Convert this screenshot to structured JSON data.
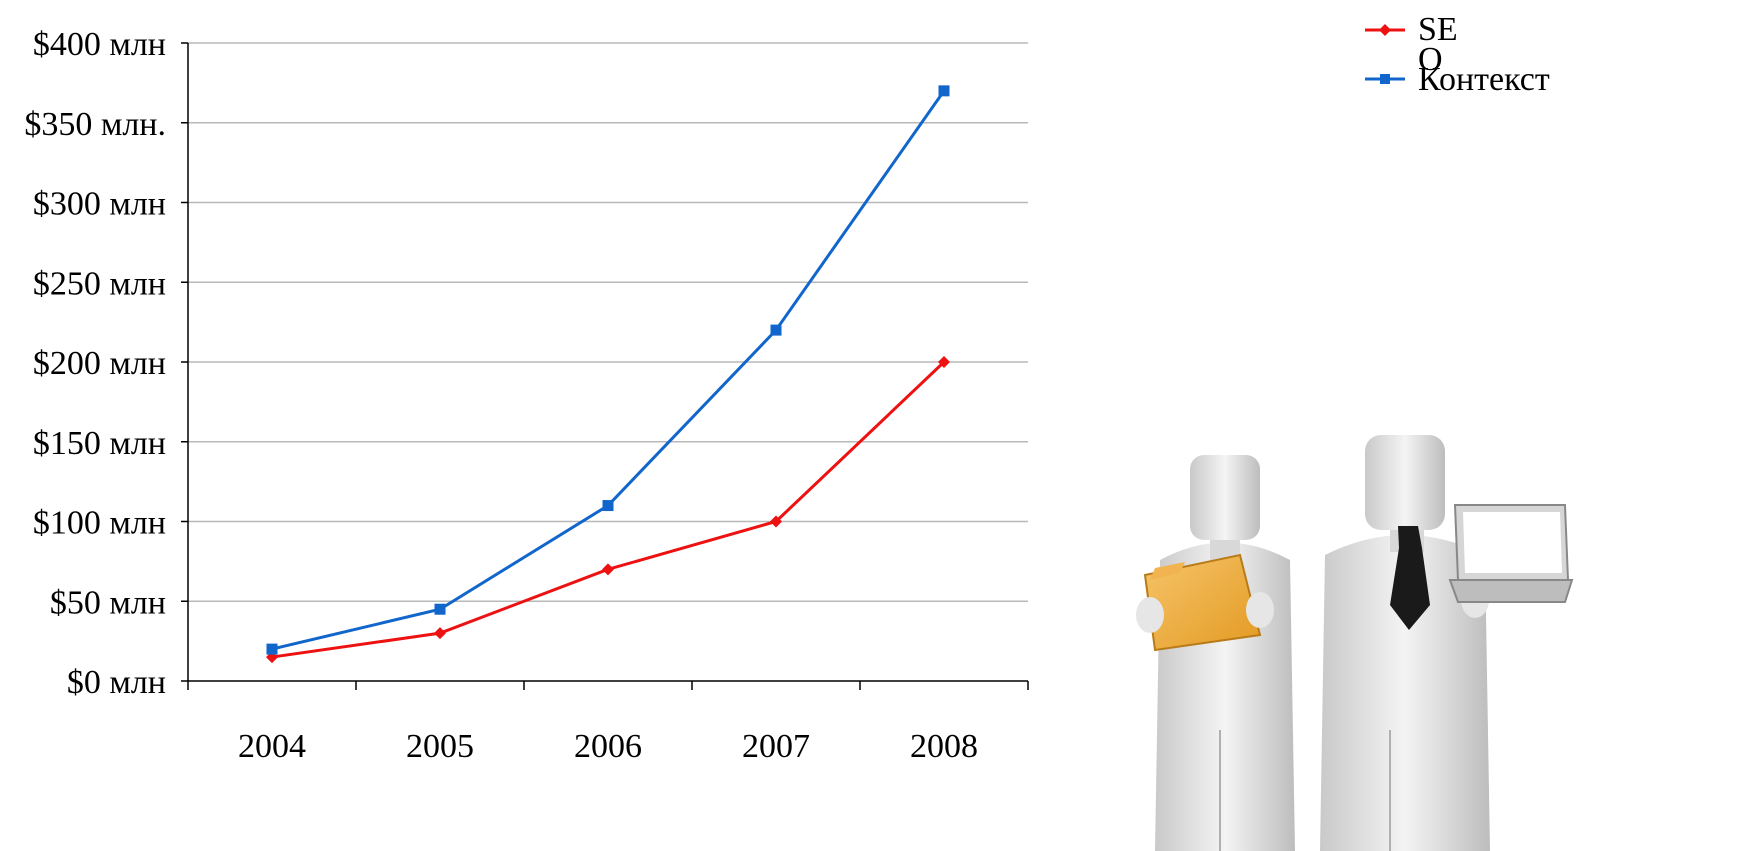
{
  "chart_data": {
    "type": "line",
    "categories": [
      "2004",
      "2005",
      "2006",
      "2007",
      "2008"
    ],
    "y_tick_labels": [
      "$0 млн",
      "$50 млн",
      "$100 млн",
      "$150 млн",
      "$200 млн",
      "$250 млн",
      "$300 млн",
      "$350 млн.",
      "$400 млн"
    ],
    "y_ticks": [
      0,
      50,
      100,
      150,
      200,
      250,
      300,
      350,
      400
    ],
    "ylim": [
      0,
      400
    ],
    "grid": true,
    "legend_position": "top-right",
    "series": [
      {
        "name": "SEO",
        "legend_line1": "SE",
        "legend_line2": "O",
        "color": "#ee1111",
        "marker": "diamond",
        "values": [
          15,
          30,
          70,
          100,
          200
        ]
      },
      {
        "name": "Контекст",
        "color": "#1166cc",
        "marker": "square",
        "values": [
          20,
          45,
          110,
          220,
          370
        ]
      }
    ]
  },
  "illustration": {
    "icon": "business-people-icon",
    "description_colors": {
      "folder": "#f0a830",
      "tie": "#1a1a1a"
    }
  }
}
